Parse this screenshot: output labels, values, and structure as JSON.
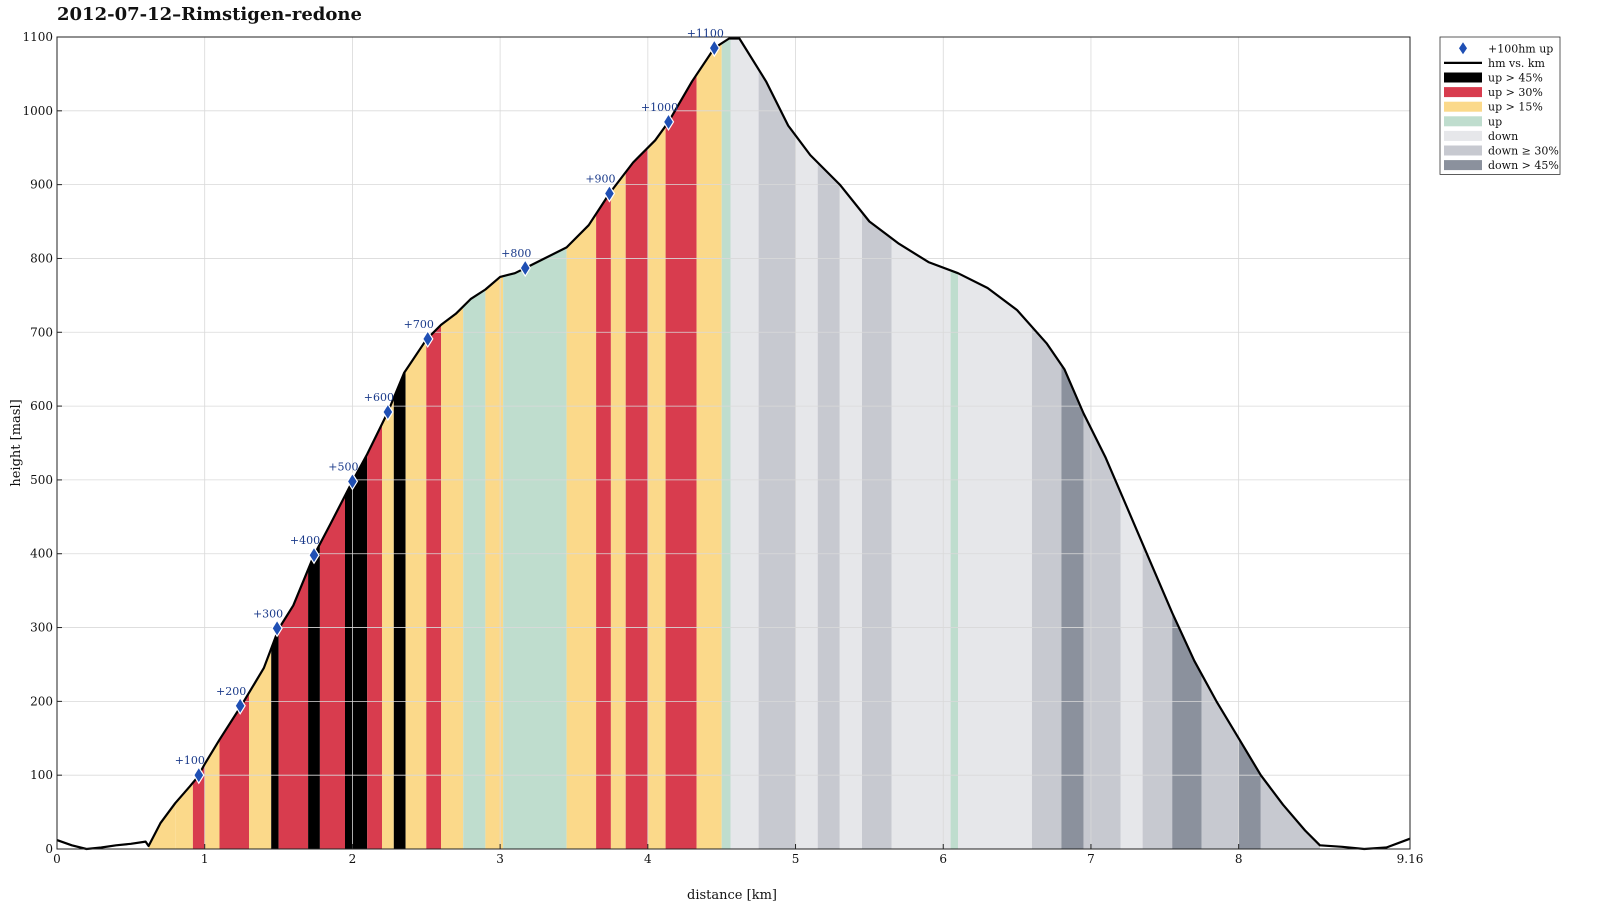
{
  "chart_data": {
    "type": "area",
    "title": "2012-07-12–Rimstigen-redone",
    "xlabel": "distance [km]",
    "ylabel": "height [masl]",
    "xlim": [
      0,
      9.16
    ],
    "ylim": [
      0,
      1100
    ],
    "x_ticks": [
      "0",
      "1",
      "2",
      "3",
      "4",
      "5",
      "6",
      "7",
      "8",
      "9.16"
    ],
    "x_tick_values": [
      0,
      1,
      2,
      3,
      4,
      5,
      6,
      7,
      8,
      9.16
    ],
    "y_ticks": [
      "0",
      "100",
      "200",
      "300",
      "400",
      "500",
      "600",
      "700",
      "800",
      "900",
      "1000",
      "1100"
    ],
    "y_tick_values": [
      0,
      100,
      200,
      300,
      400,
      500,
      600,
      700,
      800,
      900,
      1000,
      1100
    ],
    "grid": true,
    "legend_position": "top-right-outside",
    "legend": [
      {
        "label": "+100hm up",
        "kind": "marker",
        "color": "#1f4fb4"
      },
      {
        "label": "hm vs. km",
        "kind": "line",
        "color": "#000000"
      },
      {
        "label": "up > 45%",
        "kind": "patch",
        "color": "#000000"
      },
      {
        "label": "up > 30%",
        "kind": "patch",
        "color": "#d83c4e"
      },
      {
        "label": "up > 15%",
        "kind": "patch",
        "color": "#fbd98a"
      },
      {
        "label": "up",
        "kind": "patch",
        "color": "#bfddce"
      },
      {
        "label": "down",
        "kind": "patch",
        "color": "#e6e7ea"
      },
      {
        "label": "down ≥ 30%",
        "kind": "patch",
        "color": "#c7c9d0"
      },
      {
        "label": "down > 45%",
        "kind": "patch",
        "color": "#8b919d"
      }
    ],
    "profile": [
      [
        0,
        12
      ],
      [
        0.1,
        5
      ],
      [
        0.2,
        0
      ],
      [
        0.3,
        2
      ],
      [
        0.4,
        5
      ],
      [
        0.5,
        7
      ],
      [
        0.6,
        10
      ],
      [
        0.62,
        4
      ],
      [
        0.7,
        35
      ],
      [
        0.8,
        62
      ],
      [
        0.9,
        85
      ],
      [
        0.95,
        97
      ],
      [
        1.0,
        115
      ],
      [
        1.1,
        148
      ],
      [
        1.25,
        195
      ],
      [
        1.4,
        245
      ],
      [
        1.5,
        298
      ],
      [
        1.6,
        330
      ],
      [
        1.74,
        398
      ],
      [
        1.85,
        440
      ],
      [
        2.0,
        498
      ],
      [
        2.1,
        535
      ],
      [
        2.24,
        592
      ],
      [
        2.35,
        645
      ],
      [
        2.5,
        690
      ],
      [
        2.6,
        710
      ],
      [
        2.7,
        725
      ],
      [
        2.8,
        745
      ],
      [
        2.9,
        758
      ],
      [
        3.0,
        775
      ],
      [
        3.1,
        780
      ],
      [
        3.17,
        787
      ],
      [
        3.3,
        800
      ],
      [
        3.45,
        815
      ],
      [
        3.6,
        845
      ],
      [
        3.74,
        888
      ],
      [
        3.9,
        930
      ],
      [
        4.05,
        960
      ],
      [
        4.14,
        985
      ],
      [
        4.3,
        1040
      ],
      [
        4.45,
        1085
      ],
      [
        4.55,
        1098
      ],
      [
        4.62,
        1098
      ],
      [
        4.8,
        1040
      ],
      [
        4.95,
        980
      ],
      [
        5.1,
        940
      ],
      [
        5.3,
        900
      ],
      [
        5.5,
        850
      ],
      [
        5.7,
        820
      ],
      [
        5.9,
        795
      ],
      [
        6.1,
        780
      ],
      [
        6.3,
        760
      ],
      [
        6.5,
        730
      ],
      [
        6.7,
        685
      ],
      [
        6.82,
        650
      ],
      [
        6.95,
        590
      ],
      [
        7.1,
        530
      ],
      [
        7.25,
        460
      ],
      [
        7.4,
        390
      ],
      [
        7.55,
        320
      ],
      [
        7.7,
        255
      ],
      [
        7.85,
        200
      ],
      [
        8.0,
        150
      ],
      [
        8.15,
        100
      ],
      [
        8.3,
        60
      ],
      [
        8.45,
        25
      ],
      [
        8.55,
        5
      ],
      [
        8.7,
        3
      ],
      [
        8.85,
        0
      ],
      [
        9.0,
        2
      ],
      [
        9.16,
        14
      ]
    ],
    "segments": [
      [
        0.62,
        0.8,
        "up > 15%"
      ],
      [
        0.8,
        0.92,
        "up > 15%"
      ],
      [
        0.92,
        1.0,
        "up > 30%"
      ],
      [
        1.0,
        1.1,
        "up > 15%"
      ],
      [
        1.1,
        1.3,
        "up > 30%"
      ],
      [
        1.3,
        1.45,
        "up > 15%"
      ],
      [
        1.45,
        1.5,
        "up > 45%"
      ],
      [
        1.5,
        1.7,
        "up > 30%"
      ],
      [
        1.7,
        1.78,
        "up > 45%"
      ],
      [
        1.78,
        1.95,
        "up > 30%"
      ],
      [
        1.95,
        2.1,
        "up > 45%"
      ],
      [
        2.1,
        2.2,
        "up > 30%"
      ],
      [
        2.2,
        2.28,
        "up > 15%"
      ],
      [
        2.28,
        2.36,
        "up > 45%"
      ],
      [
        2.36,
        2.5,
        "up > 15%"
      ],
      [
        2.5,
        2.6,
        "up > 30%"
      ],
      [
        2.6,
        2.75,
        "up > 15%"
      ],
      [
        2.75,
        2.9,
        "up"
      ],
      [
        2.9,
        3.02,
        "up > 15%"
      ],
      [
        3.02,
        3.45,
        "up"
      ],
      [
        3.45,
        3.65,
        "up > 15%"
      ],
      [
        3.65,
        3.75,
        "up > 30%"
      ],
      [
        3.75,
        3.85,
        "up > 15%"
      ],
      [
        3.85,
        4.0,
        "up > 30%"
      ],
      [
        4.0,
        4.12,
        "up > 15%"
      ],
      [
        4.12,
        4.33,
        "up > 30%"
      ],
      [
        4.33,
        4.5,
        "up > 15%"
      ],
      [
        4.5,
        4.56,
        "up"
      ],
      [
        4.56,
        4.75,
        "down"
      ],
      [
        4.75,
        5.0,
        "down ≥ 30%"
      ],
      [
        5.0,
        5.15,
        "down"
      ],
      [
        5.15,
        5.3,
        "down ≥ 30%"
      ],
      [
        5.3,
        5.45,
        "down"
      ],
      [
        5.45,
        5.65,
        "down ≥ 30%"
      ],
      [
        5.65,
        6.05,
        "down"
      ],
      [
        6.05,
        6.1,
        "up"
      ],
      [
        6.1,
        6.6,
        "down"
      ],
      [
        6.6,
        6.8,
        "down ≥ 30%"
      ],
      [
        6.8,
        6.95,
        "down > 45%"
      ],
      [
        6.95,
        7.2,
        "down ≥ 30%"
      ],
      [
        7.2,
        7.35,
        "down"
      ],
      [
        7.35,
        7.55,
        "down ≥ 30%"
      ],
      [
        7.55,
        7.75,
        "down > 45%"
      ],
      [
        7.75,
        8.0,
        "down ≥ 30%"
      ],
      [
        8.0,
        8.15,
        "down > 45%"
      ],
      [
        8.15,
        8.55,
        "down ≥ 30%"
      ]
    ],
    "markers": [
      {
        "x": 0.96,
        "y": 100,
        "label": "+100"
      },
      {
        "x": 1.24,
        "y": 194,
        "label": "+200"
      },
      {
        "x": 1.49,
        "y": 299,
        "label": "+300"
      },
      {
        "x": 1.74,
        "y": 398,
        "label": "+400"
      },
      {
        "x": 2.0,
        "y": 498,
        "label": "+500"
      },
      {
        "x": 2.24,
        "y": 592,
        "label": "+600"
      },
      {
        "x": 2.51,
        "y": 691,
        "label": "+700"
      },
      {
        "x": 3.17,
        "y": 787,
        "label": "+800"
      },
      {
        "x": 3.74,
        "y": 888,
        "label": "+900"
      },
      {
        "x": 4.14,
        "y": 985,
        "label": "+1000"
      },
      {
        "x": 4.45,
        "y": 1085,
        "label": "+1100"
      }
    ]
  }
}
